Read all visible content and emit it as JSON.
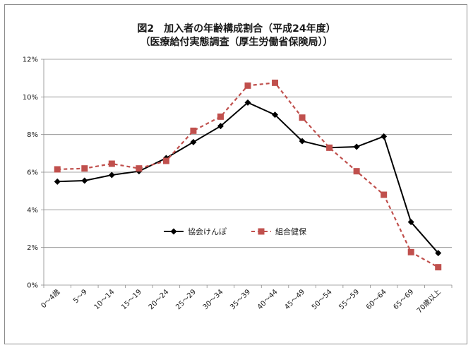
{
  "chart_data": {
    "type": "line",
    "title": "図2　加入者の年齢構成割合（平成24年度）",
    "subtitle": "（医療給付実態調査（厚生労働省保険局））",
    "categories": [
      "0～4歳",
      "5～9",
      "10～14",
      "15～19",
      "20～24",
      "25～29",
      "30～34",
      "35～39",
      "40～44",
      "45～49",
      "50～54",
      "55～59",
      "60～64",
      "65～69",
      "70歳以上"
    ],
    "series": [
      {
        "name": "協会けんぽ",
        "color": "#000000",
        "dash": "solid",
        "marker": "diamond",
        "values": [
          5.5,
          5.55,
          5.85,
          6.05,
          6.75,
          7.6,
          8.45,
          9.7,
          9.05,
          7.65,
          7.3,
          7.35,
          7.9,
          3.35,
          1.7
        ]
      },
      {
        "name": "組合健保",
        "color": "#c0504d",
        "dash": "dashed",
        "marker": "square",
        "values": [
          6.15,
          6.2,
          6.45,
          6.2,
          6.6,
          8.2,
          8.95,
          10.6,
          10.75,
          8.9,
          7.3,
          6.05,
          4.8,
          1.75,
          0.95
        ]
      }
    ],
    "ylim": [
      0,
      12
    ],
    "yticks": [
      0,
      2,
      4,
      6,
      8,
      10,
      12
    ],
    "ytick_labels": [
      "0%",
      "2%",
      "4%",
      "6%",
      "8%",
      "10%",
      "12%"
    ],
    "grid": true,
    "legend_position": "lower-center-inside"
  }
}
